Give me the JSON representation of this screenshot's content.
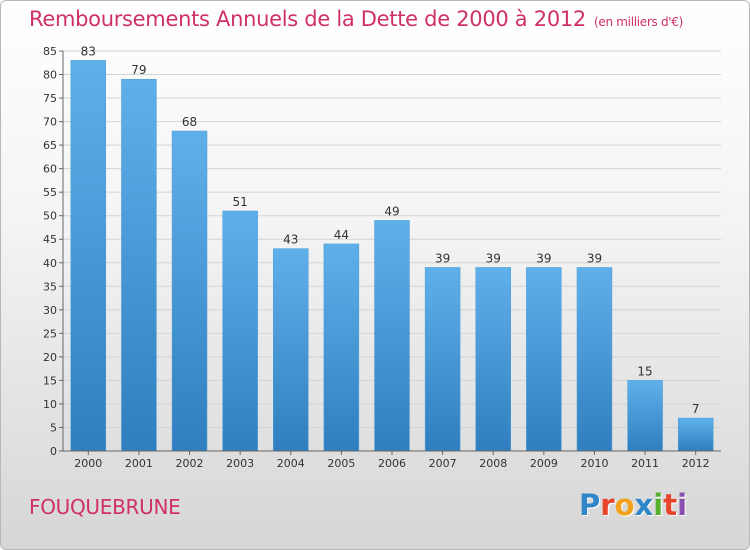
{
  "header": {
    "title": "Remboursements Annuels de la Dette de 2000 à 2012",
    "unit": "(en milliers d'€)"
  },
  "footer": {
    "commune": "FOUQUEBRUNE",
    "logo_letters": [
      "P",
      "r",
      "o",
      "x",
      "i",
      "t",
      "i"
    ],
    "logo_colors": [
      "#2f86c8",
      "#e8442c",
      "#f2a21a",
      "#2f86c8",
      "#58b030",
      "#e8442c",
      "#8a4fb0"
    ]
  },
  "colors": {
    "bar_top": "#5fb0ea",
    "bar_bottom": "#2f7fc0"
  },
  "chart_data": {
    "type": "bar",
    "categories": [
      "2000",
      "2001",
      "2002",
      "2003",
      "2004",
      "2005",
      "2006",
      "2007",
      "2008",
      "2009",
      "2010",
      "2011",
      "2012"
    ],
    "values": [
      83,
      79,
      68,
      51,
      43,
      44,
      49,
      39,
      39,
      39,
      39,
      15,
      7
    ],
    "value_labels": [
      "83",
      "79",
      "68",
      "51",
      "43",
      "44",
      "49",
      "39",
      "39",
      "39",
      "39",
      "15",
      "7"
    ],
    "yticks": [
      "0",
      "5",
      "10",
      "15",
      "20",
      "25",
      "30",
      "35",
      "40",
      "45",
      "50",
      "55",
      "60",
      "65",
      "70",
      "75",
      "80",
      "85"
    ],
    "ylim": [
      0,
      85
    ],
    "title": "Remboursements Annuels de la Dette de 2000 à 2012",
    "xlabel": "",
    "ylabel": "",
    "grid": true,
    "legend": "none"
  }
}
